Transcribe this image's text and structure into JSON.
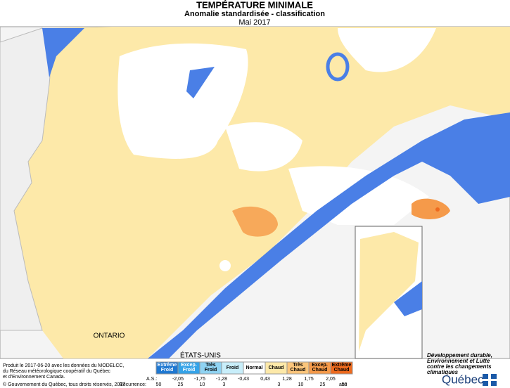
{
  "header": {
    "title": "TEMPÉRATURE MINIMALE",
    "subtitle": "Anomalie standardisée - classification",
    "date": "Mai 2017"
  },
  "places": {
    "ontario": "ONTARIO",
    "usa": "ÉTATS-UNIS"
  },
  "legend": {
    "classes": [
      {
        "label": [
          "Extrême",
          "Froid"
        ],
        "color": "#1f78d1"
      },
      {
        "label": [
          "Excep.",
          "Froid"
        ],
        "color": "#35a3e8"
      },
      {
        "label": [
          "Très",
          "Froid"
        ],
        "color": "#8fd3f2"
      },
      {
        "label": [
          "Froid"
        ],
        "color": "#c8eefa"
      },
      {
        "label": [
          "Normal"
        ],
        "color": "#ffffff"
      },
      {
        "label": [
          "Chaud"
        ],
        "color": "#fde9a9"
      },
      {
        "label": [
          "Très",
          "Chaud"
        ],
        "color": "#fbc67c"
      },
      {
        "label": [
          "Excep.",
          "Chaud"
        ],
        "color": "#f59a4a"
      },
      {
        "label": [
          "Extrême",
          "Chaud"
        ],
        "color": "#ee6a1e"
      }
    ],
    "as_label": "A.S.:",
    "thresholds": [
      "-2,05",
      "-1,75",
      "-1,28",
      "-0,43",
      "0,43",
      "1,28",
      "1,75",
      "2,05"
    ],
    "recurrence_label": "Récurrence:",
    "recurrence": [
      "50",
      "25",
      "10",
      "3",
      "3",
      "10",
      "25",
      "50"
    ],
    "recurrence_unit": "ans"
  },
  "credits": {
    "lines": [
      "Produit le 2017-06-20 avec les données du MODELCC,",
      "du Réseau météorologique coopératif du Québec",
      "et d'Environnement Canada."
    ],
    "copyright": "© Gouvernement du Québec, tous droits réservés, 2017"
  },
  "logo": {
    "lines": [
      "Développement durable,",
      "Environnement et Lutte",
      "contre les changements",
      "climatiques"
    ],
    "name": "Québec"
  }
}
